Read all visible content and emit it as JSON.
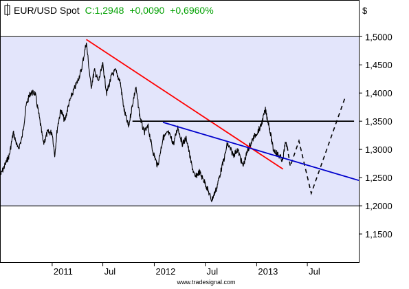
{
  "header": {
    "symbol": "EUR/USD Spot",
    "quote_prefix": "C:1,2948",
    "change_abs": "+0,0090",
    "change_pct": "+0,6960%",
    "currency_unit": "$"
  },
  "watermark": "www.tradesignal.com",
  "colors": {
    "band_fill": "#e3e5fb",
    "price_line": "#000000",
    "red_trend": "#ff0000",
    "blue_trend": "#0000cc",
    "quote_green": "#00a000",
    "resistance": "#000000"
  },
  "chart_data": {
    "type": "line",
    "title": "EUR/USD Spot",
    "ylabel": "$",
    "ylim": [
      1.1,
      1.565
    ],
    "xlim": [
      "2010-07-01",
      "2014-01-01"
    ],
    "y_ticks": [
      {
        "value": 1.5,
        "label": "1,5000"
      },
      {
        "value": 1.45,
        "label": "1,4500"
      },
      {
        "value": 1.4,
        "label": "1,4000"
      },
      {
        "value": 1.35,
        "label": "1,3500"
      },
      {
        "value": 1.3,
        "label": "1,3000"
      },
      {
        "value": 1.25,
        "label": "1,2500"
      },
      {
        "value": 1.2,
        "label": "1,2000"
      },
      {
        "value": 1.15,
        "label": "1,1500"
      }
    ],
    "x_ticks": [
      {
        "date": "2011-01-01",
        "label": "2011"
      },
      {
        "date": "2011-07-01",
        "label": "Jul"
      },
      {
        "date": "2012-01-01",
        "label": "2012"
      },
      {
        "date": "2012-07-01",
        "label": "Jul"
      },
      {
        "date": "2013-01-01",
        "label": "2013"
      },
      {
        "date": "2013-07-01",
        "label": "Jul"
      }
    ],
    "band": {
      "low": 1.2,
      "high": 1.5
    },
    "series": [
      {
        "role": "price",
        "points": [
          [
            "2010-07-01",
            1.255
          ],
          [
            "2010-08-01",
            1.29
          ],
          [
            "2010-08-15",
            1.33
          ],
          [
            "2010-09-01",
            1.3
          ],
          [
            "2010-09-15",
            1.32
          ],
          [
            "2010-10-01",
            1.38
          ],
          [
            "2010-10-15",
            1.4
          ],
          [
            "2010-11-01",
            1.4
          ],
          [
            "2010-11-15",
            1.36
          ],
          [
            "2010-12-01",
            1.31
          ],
          [
            "2010-12-15",
            1.33
          ],
          [
            "2011-01-01",
            1.33
          ],
          [
            "2011-01-10",
            1.29
          ],
          [
            "2011-01-20",
            1.34
          ],
          [
            "2011-02-01",
            1.37
          ],
          [
            "2011-02-15",
            1.35
          ],
          [
            "2011-03-01",
            1.38
          ],
          [
            "2011-03-15",
            1.4
          ],
          [
            "2011-04-01",
            1.42
          ],
          [
            "2011-04-15",
            1.44
          ],
          [
            "2011-05-03",
            1.49
          ],
          [
            "2011-05-20",
            1.41
          ],
          [
            "2011-06-01",
            1.44
          ],
          [
            "2011-06-15",
            1.42
          ],
          [
            "2011-07-01",
            1.45
          ],
          [
            "2011-07-15",
            1.4
          ],
          [
            "2011-08-01",
            1.43
          ],
          [
            "2011-08-15",
            1.44
          ],
          [
            "2011-09-01",
            1.42
          ],
          [
            "2011-09-15",
            1.37
          ],
          [
            "2011-10-01",
            1.34
          ],
          [
            "2011-10-15",
            1.38
          ],
          [
            "2011-10-27",
            1.41
          ],
          [
            "2011-11-10",
            1.36
          ],
          [
            "2011-11-25",
            1.33
          ],
          [
            "2011-12-10",
            1.34
          ],
          [
            "2011-12-25",
            1.3
          ],
          [
            "2012-01-13",
            1.27
          ],
          [
            "2012-02-01",
            1.32
          ],
          [
            "2012-02-20",
            1.33
          ],
          [
            "2012-03-10",
            1.31
          ],
          [
            "2012-03-25",
            1.34
          ],
          [
            "2012-04-10",
            1.31
          ],
          [
            "2012-04-25",
            1.32
          ],
          [
            "2012-05-10",
            1.28
          ],
          [
            "2012-05-25",
            1.25
          ],
          [
            "2012-06-10",
            1.26
          ],
          [
            "2012-07-01",
            1.24
          ],
          [
            "2012-07-24",
            1.21
          ],
          [
            "2012-08-10",
            1.23
          ],
          [
            "2012-08-25",
            1.26
          ],
          [
            "2012-09-10",
            1.29
          ],
          [
            "2012-09-18",
            1.31
          ],
          [
            "2012-10-10",
            1.29
          ],
          [
            "2012-10-25",
            1.3
          ],
          [
            "2012-11-13",
            1.27
          ],
          [
            "2012-12-01",
            1.3
          ],
          [
            "2012-12-20",
            1.32
          ],
          [
            "2013-01-15",
            1.34
          ],
          [
            "2013-02-01",
            1.37
          ],
          [
            "2013-02-15",
            1.34
          ],
          [
            "2013-03-01",
            1.3
          ],
          [
            "2013-03-20",
            1.29
          ],
          [
            "2013-04-05",
            1.28
          ],
          [
            "2013-04-12",
            1.31
          ],
          [
            "2013-04-20",
            1.305
          ]
        ]
      },
      {
        "role": "projection",
        "style": "dashed",
        "points": [
          [
            "2013-04-20",
            1.305
          ],
          [
            "2013-05-01",
            1.27
          ],
          [
            "2013-06-01",
            1.315
          ],
          [
            "2013-07-15",
            1.222
          ],
          [
            "2013-11-15",
            1.395
          ]
        ]
      },
      {
        "role": "red-trendline",
        "points": [
          [
            "2011-05-03",
            1.495
          ],
          [
            "2013-04-05",
            1.265
          ]
        ]
      },
      {
        "role": "blue-trendline",
        "points": [
          [
            "2012-02-01",
            1.348
          ],
          [
            "2014-01-01",
            1.245
          ]
        ]
      },
      {
        "role": "horizontal-resistance",
        "points": [
          [
            "2011-10-15",
            1.35
          ],
          [
            "2013-12-15",
            1.35
          ]
        ]
      }
    ]
  }
}
